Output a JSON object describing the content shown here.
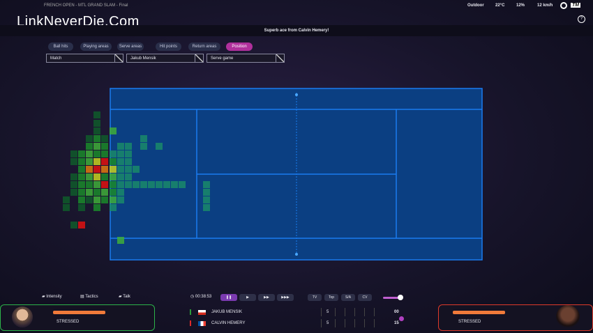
{
  "header": {
    "title": "FRENCH OPEN - MTL GRAND SLAM - Final",
    "watermark": "LinkNeverDie.Com"
  },
  "weather": {
    "condition": "Outdoor",
    "temperature": "22°C",
    "humidity": "12%",
    "wind": "12 km/h",
    "logo": "TM",
    "help": "?"
  },
  "commentary": "Superb ace from Calvin Hemery!",
  "tabs": [
    "Ball hits",
    "Playing areas",
    "Serve areas",
    "Hit points",
    "Return areas",
    "Position"
  ],
  "filters": [
    "Match",
    "Jakub Mensik",
    "Serve game"
  ],
  "controls": {
    "intensity": "Intensity",
    "tactics": "Tactics",
    "talk": "Talk",
    "clock": "00:38:53",
    "views": [
      "TV",
      "Top",
      "S/A",
      "CV"
    ]
  },
  "players": [
    {
      "name": "JAKUB MENSIK",
      "status": "STRESSED",
      "sets": [
        5
      ],
      "points": "00"
    },
    {
      "name": "CALVIN HEMERY",
      "status": "STRESSED",
      "sets": [
        5
      ],
      "points": 15
    }
  ]
}
